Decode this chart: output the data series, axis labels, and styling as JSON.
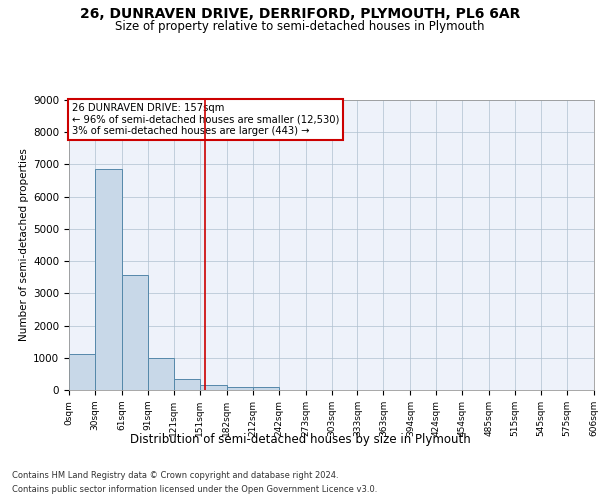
{
  "title": "26, DUNRAVEN DRIVE, DERRIFORD, PLYMOUTH, PL6 6AR",
  "subtitle": "Size of property relative to semi-detached houses in Plymouth",
  "xlabel": "Distribution of semi-detached houses by size in Plymouth",
  "ylabel": "Number of semi-detached properties",
  "bin_edges": [
    0,
    30,
    61,
    91,
    121,
    151,
    182,
    212,
    242,
    273,
    303,
    333,
    363,
    394,
    424,
    454,
    485,
    515,
    545,
    575,
    606
  ],
  "bin_counts": [
    1120,
    6870,
    3570,
    1000,
    330,
    145,
    105,
    90,
    0,
    0,
    0,
    0,
    0,
    0,
    0,
    0,
    0,
    0,
    0,
    0
  ],
  "bar_color": "#c8d8e8",
  "bar_edge_color": "#5588aa",
  "property_size": 157,
  "vline_color": "#cc0000",
  "annotation_text": "26 DUNRAVEN DRIVE: 157sqm\n← 96% of semi-detached houses are smaller (12,530)\n3% of semi-detached houses are larger (443) →",
  "annotation_box_color": "#ffffff",
  "annotation_box_edge": "#cc0000",
  "ylim": [
    0,
    9000
  ],
  "yticks": [
    0,
    1000,
    2000,
    3000,
    4000,
    5000,
    6000,
    7000,
    8000,
    9000
  ],
  "tick_labels": [
    "0sqm",
    "30sqm",
    "61sqm",
    "91sqm",
    "121sqm",
    "151sqm",
    "182sqm",
    "212sqm",
    "242sqm",
    "273sqm",
    "303sqm",
    "333sqm",
    "363sqm",
    "394sqm",
    "424sqm",
    "454sqm",
    "485sqm",
    "515sqm",
    "545sqm",
    "575sqm",
    "606sqm"
  ],
  "footer_line1": "Contains HM Land Registry data © Crown copyright and database right 2024.",
  "footer_line2": "Contains public sector information licensed under the Open Government Licence v3.0.",
  "bg_color": "#eef2fa",
  "grid_color": "#b0c0d0"
}
